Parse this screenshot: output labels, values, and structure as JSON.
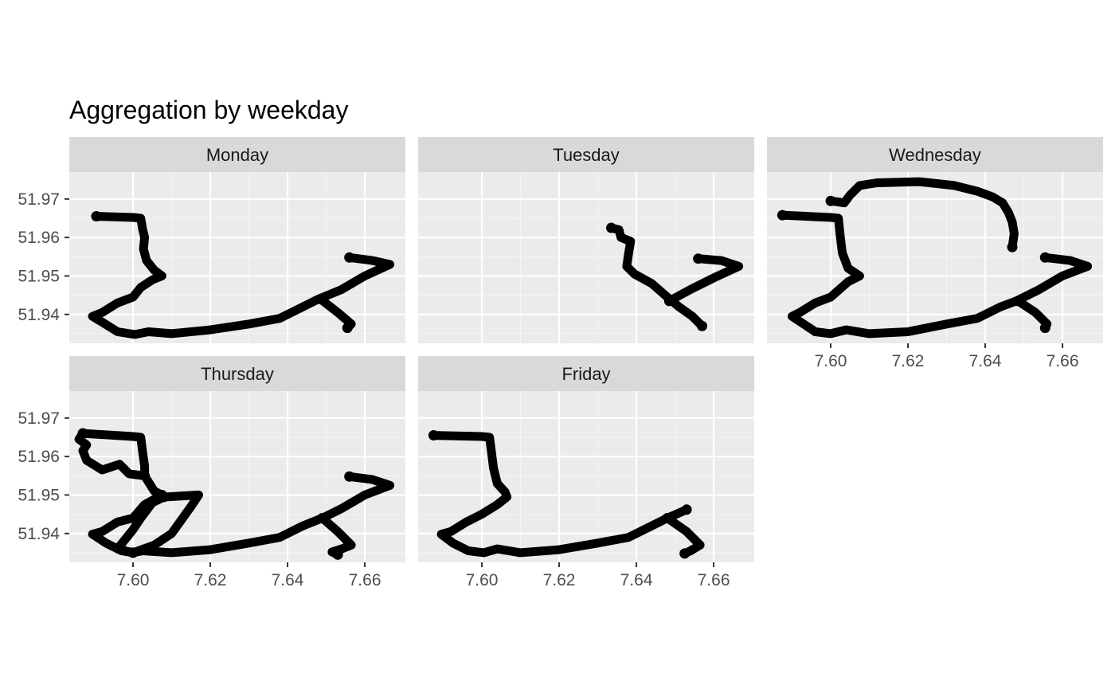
{
  "chart_data": {
    "type": "scatter",
    "title": "Aggregation by weekday",
    "xlabel": "",
    "ylabel": "",
    "xlim": [
      7.5835,
      7.6705
    ],
    "ylim": [
      51.9325,
      51.977
    ],
    "x_ticks": [
      7.6,
      7.62,
      7.64,
      7.66
    ],
    "x_tick_labels": [
      "7.60",
      "7.62",
      "7.64",
      "7.66"
    ],
    "y_ticks": [
      51.94,
      51.95,
      51.96,
      51.97
    ],
    "y_tick_labels": [
      "51.94",
      "51.95",
      "51.96",
      "51.97"
    ],
    "grid": true,
    "legend": "none",
    "point_color": "#000000",
    "panel_background": "#ebebeb",
    "strip_background": "#d9d9d9",
    "facets": [
      {
        "name": "Monday",
        "paths": [
          [
            [
              7.5905,
              51.9655
            ],
            [
              7.6,
              51.9652
            ],
            [
              7.602,
              51.965
            ],
            [
              7.6025,
              51.962
            ],
            [
              7.603,
              51.96
            ],
            [
              7.6027,
              51.957
            ],
            [
              7.6035,
              51.954
            ],
            [
              7.6055,
              51.9515
            ],
            [
              7.6075,
              51.95
            ],
            [
              7.605,
              51.949
            ],
            [
              7.602,
              51.947
            ],
            [
              7.6,
              51.9445
            ],
            [
              7.596,
              51.943
            ],
            [
              7.592,
              51.9405
            ],
            [
              7.5895,
              51.9395
            ],
            [
              7.592,
              51.938
            ],
            [
              7.596,
              51.9355
            ],
            [
              7.6005,
              51.9348
            ],
            [
              7.604,
              51.9355
            ],
            [
              7.61,
              51.935
            ],
            [
              7.62,
              51.936
            ],
            [
              7.63,
              51.9375
            ],
            [
              7.638,
              51.939
            ],
            [
              7.644,
              51.942
            ],
            [
              7.648,
              51.944
            ],
            [
              7.654,
              51.9465
            ],
            [
              7.66,
              51.95
            ],
            [
              7.6665,
              51.953
            ],
            [
              7.662,
              51.954
            ],
            [
              7.656,
              51.9548
            ]
          ],
          [
            [
              7.6485,
              51.944
            ],
            [
              7.653,
              51.9405
            ],
            [
              7.6565,
              51.9375
            ],
            [
              7.6555,
              51.9365
            ]
          ]
        ]
      },
      {
        "name": "Tuesday",
        "paths": [
          [
            [
              7.6335,
              51.9625
            ],
            [
              7.6355,
              51.962
            ],
            [
              7.636,
              51.96
            ],
            [
              7.6385,
              51.959
            ],
            [
              7.638,
              51.956
            ],
            [
              7.6375,
              51.9525
            ],
            [
              7.6395,
              51.9505
            ],
            [
              7.644,
              51.948
            ],
            [
              7.648,
              51.9445
            ],
            [
              7.651,
              51.942
            ],
            [
              7.6545,
              51.9395
            ],
            [
              7.657,
              51.937
            ]
          ],
          [
            [
              7.6485,
              51.9435
            ],
            [
              7.654,
              51.9465
            ],
            [
              7.66,
              51.9495
            ],
            [
              7.6665,
              51.9525
            ],
            [
              7.662,
              51.954
            ],
            [
              7.656,
              51.9545
            ]
          ]
        ]
      },
      {
        "name": "Wednesday",
        "paths": [
          [
            [
              7.5875,
              51.9658
            ],
            [
              7.6,
              51.9652
            ],
            [
              7.602,
              51.965
            ],
            [
              7.6025,
              51.96
            ],
            [
              7.603,
              51.956
            ],
            [
              7.6045,
              51.952
            ],
            [
              7.6075,
              51.95
            ],
            [
              7.6045,
              51.9485
            ],
            [
              7.6,
              51.9445
            ],
            [
              7.596,
              51.943
            ],
            [
              7.592,
              51.9405
            ],
            [
              7.59,
              51.9395
            ],
            [
              7.593,
              51.9375
            ],
            [
              7.596,
              51.9355
            ],
            [
              7.6,
              51.935
            ],
            [
              7.604,
              51.936
            ],
            [
              7.61,
              51.935
            ],
            [
              7.62,
              51.9355
            ],
            [
              7.63,
              51.9375
            ],
            [
              7.638,
              51.939
            ],
            [
              7.644,
              51.942
            ],
            [
              7.648,
              51.9435
            ],
            [
              7.654,
              51.9465
            ],
            [
              7.66,
              51.95
            ],
            [
              7.6665,
              51.9525
            ],
            [
              7.662,
              51.954
            ],
            [
              7.6555,
              51.9548
            ]
          ],
          [
            [
              7.6485,
              51.9435
            ],
            [
              7.653,
              51.9405
            ],
            [
              7.656,
              51.9375
            ],
            [
              7.6555,
              51.9365
            ]
          ],
          [
            [
              7.6,
              51.9695
            ],
            [
              7.6035,
              51.969
            ],
            [
              7.605,
              51.971
            ],
            [
              7.6075,
              51.9735
            ],
            [
              7.612,
              51.9742
            ],
            [
              7.623,
              51.9745
            ],
            [
              7.632,
              51.9735
            ],
            [
              7.638,
              51.972
            ],
            [
              7.642,
              51.9705
            ],
            [
              7.6445,
              51.969
            ],
            [
              7.646,
              51.9665
            ],
            [
              7.647,
              51.964
            ],
            [
              7.6475,
              51.961
            ],
            [
              7.647,
              51.9575
            ]
          ]
        ]
      },
      {
        "name": "Thursday",
        "paths": [
          [
            [
              7.587,
              51.966
            ],
            [
              7.6,
              51.9652
            ],
            [
              7.602,
              51.965
            ],
            [
              7.6025,
              51.961
            ],
            [
              7.603,
              51.9575
            ],
            [
              7.603,
              51.955
            ],
            [
              7.599,
              51.9555
            ],
            [
              7.5965,
              51.958
            ],
            [
              7.592,
              51.9565
            ],
            [
              7.588,
              51.959
            ],
            [
              7.587,
              51.9615
            ],
            [
              7.588,
              51.963
            ],
            [
              7.586,
              51.9645
            ],
            [
              7.587,
              51.966
            ]
          ],
          [
            [
              7.603,
              51.955
            ],
            [
              7.6055,
              51.951
            ],
            [
              7.6085,
              51.9495
            ],
            [
              7.617,
              51.95
            ],
            [
              7.615,
              51.947
            ],
            [
              7.61,
              51.94
            ],
            [
              7.6055,
              51.937
            ],
            [
              7.6,
              51.935
            ],
            [
              7.6025,
              51.9355
            ],
            [
              7.61,
              51.935
            ],
            [
              7.62,
              51.9358
            ],
            [
              7.63,
              51.9375
            ],
            [
              7.638,
              51.939
            ],
            [
              7.644,
              51.942
            ],
            [
              7.649,
              51.944
            ],
            [
              7.654,
              51.9465
            ],
            [
              7.66,
              51.95
            ],
            [
              7.6665,
              51.9525
            ],
            [
              7.662,
              51.954
            ],
            [
              7.656,
              51.9548
            ]
          ],
          [
            [
              7.608,
              51.9495
            ],
            [
              7.605,
              51.948
            ],
            [
              7.602,
              51.944
            ],
            [
              7.6,
              51.941
            ],
            [
              7.596,
              51.936
            ],
            [
              7.6,
              51.935
            ]
          ],
          [
            [
              7.6075,
              51.95
            ],
            [
              7.603,
              51.9475
            ],
            [
              7.6,
              51.944
            ],
            [
              7.596,
              51.943
            ],
            [
              7.592,
              51.9405
            ],
            [
              7.5895,
              51.9398
            ],
            [
              7.593,
              51.9375
            ],
            [
              7.597,
              51.9355
            ],
            [
              7.6,
              51.935
            ]
          ],
          [
            [
              7.649,
              51.944
            ],
            [
              7.653,
              51.9405
            ],
            [
              7.6565,
              51.937
            ],
            [
              7.654,
              51.936
            ],
            [
              7.6515,
              51.9352
            ],
            [
              7.653,
              51.9345
            ]
          ]
        ]
      },
      {
        "name": "Friday",
        "paths": [
          [
            [
              7.5875,
              51.9655
            ],
            [
              7.6,
              51.9652
            ],
            [
              7.602,
              51.965
            ],
            [
              7.6025,
              51.961
            ],
            [
              7.603,
              51.957
            ],
            [
              7.604,
              51.953
            ],
            [
              7.606,
              51.9508
            ],
            [
              7.6065,
              51.9495
            ],
            [
              7.604,
              51.9475
            ],
            [
              7.6,
              51.945
            ],
            [
              7.596,
              51.943
            ],
            [
              7.592,
              51.9405
            ],
            [
              7.5895,
              51.9398
            ],
            [
              7.5925,
              51.9375
            ],
            [
              7.5965,
              51.9355
            ],
            [
              7.6005,
              51.935
            ],
            [
              7.604,
              51.936
            ],
            [
              7.61,
              51.935
            ],
            [
              7.62,
              51.9358
            ],
            [
              7.63,
              51.9375
            ],
            [
              7.638,
              51.939
            ],
            [
              7.644,
              51.942
            ],
            [
              7.648,
              51.944
            ],
            [
              7.653,
              51.9462
            ]
          ],
          [
            [
              7.648,
              51.944
            ],
            [
              7.653,
              51.9405
            ],
            [
              7.6565,
              51.937
            ],
            [
              7.654,
              51.9355
            ],
            [
              7.6525,
              51.9348
            ]
          ]
        ]
      }
    ]
  }
}
